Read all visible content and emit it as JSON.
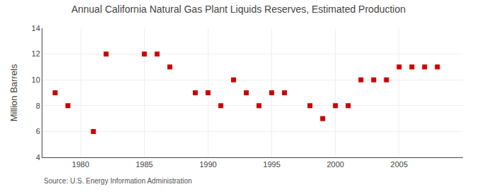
{
  "chart_data": {
    "type": "scatter",
    "title": "Annual California Natural Gas Plant Liquids Reserves, Estimated Production",
    "ylabel": "Million Barrels",
    "annotations": [
      "Source: U.S. Energy Information Administration"
    ],
    "x": [
      1978,
      1979,
      1981,
      1982,
      1985,
      1986,
      1987,
      1989,
      1990,
      1991,
      1992,
      1993,
      1994,
      1995,
      1996,
      1998,
      1999,
      2000,
      2001,
      2002,
      2003,
      2004,
      2005,
      2006,
      2007,
      2008
    ],
    "values": [
      9,
      8,
      6,
      12,
      12,
      12,
      11,
      9,
      9,
      8,
      10,
      9,
      8,
      9,
      9,
      8,
      7,
      8,
      8,
      10,
      10,
      10,
      11,
      11,
      11,
      11
    ],
    "color": "#cc0000",
    "marker": "square",
    "xlim": [
      1977,
      2010
    ],
    "ylim": [
      4,
      14
    ],
    "xticks": [
      1980,
      1985,
      1990,
      1995,
      2000,
      2005
    ],
    "yticks": [
      4,
      6,
      8,
      10,
      12,
      14
    ],
    "grid": true
  }
}
